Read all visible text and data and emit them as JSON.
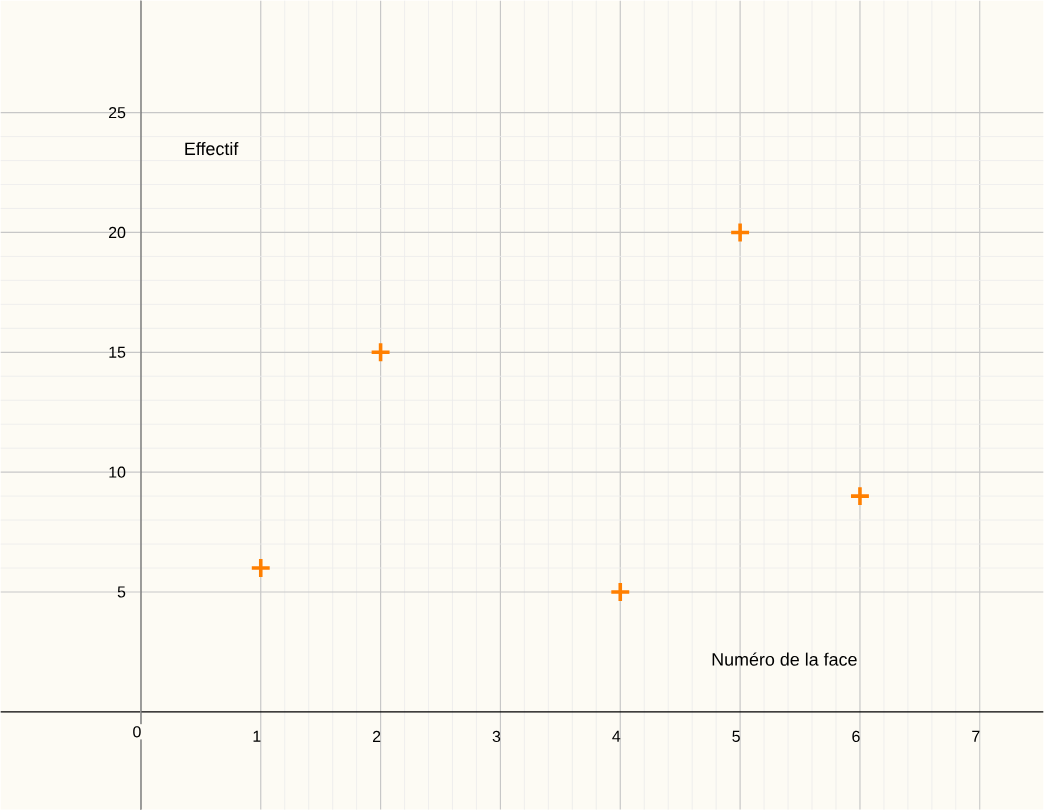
{
  "chart_data": {
    "type": "scatter",
    "xlabel": "Numéro de la face",
    "ylabel": "Effectif",
    "x": [
      1,
      2,
      4,
      5,
      6
    ],
    "values": [
      6,
      15,
      5,
      20,
      9
    ],
    "color": "#ff7f00",
    "marker": "cross",
    "grid": true,
    "xlim": [
      -1.17,
      7.53
    ],
    "ylim": [
      -4.08,
      29.67
    ],
    "xticks": [
      0,
      1,
      2,
      3,
      4,
      5,
      6,
      7
    ],
    "yticks": [
      5,
      10,
      15,
      20,
      25
    ]
  }
}
